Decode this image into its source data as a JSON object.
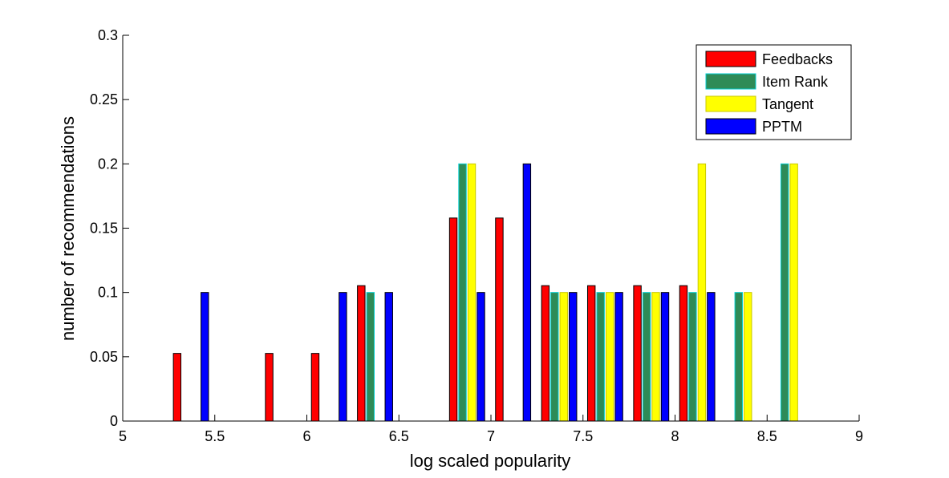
{
  "chart_data": {
    "type": "bar",
    "xlabel": "log scaled popularity",
    "ylabel": "number of recommendations",
    "xlim": [
      5,
      9
    ],
    "ylim": [
      0,
      0.3
    ],
    "xticks": [
      "5",
      "5.5",
      "6",
      "6.5",
      "7",
      "7.5",
      "8",
      "8.5",
      "9"
    ],
    "yticks": [
      "0",
      "0.05",
      "0.1",
      "0.15",
      "0.2",
      "0.25",
      "0.3"
    ],
    "bin_centers": [
      5.125,
      5.375,
      5.625,
      5.875,
      6.125,
      6.375,
      6.625,
      6.875,
      7.125,
      7.375,
      7.625,
      7.875,
      8.125,
      8.375,
      8.625,
      8.875
    ],
    "legend_position": "top-right",
    "series": [
      {
        "name": "Feedbacks",
        "color": "#ff0000",
        "values": [
          0,
          0.0526,
          0,
          0.0526,
          0.0526,
          0.1053,
          0,
          0.1579,
          0.1579,
          0.1053,
          0.1053,
          0.1053,
          0.1053,
          0,
          0,
          0
        ]
      },
      {
        "name": "Item Rank",
        "color": "#2e8b57",
        "values": [
          0,
          0,
          0,
          0,
          0,
          0.1,
          0,
          0.2,
          0,
          0.1,
          0.1,
          0.1,
          0.1,
          0.1,
          0.2,
          0
        ]
      },
      {
        "name": "Tangent",
        "color": "#ffff00",
        "values": [
          0,
          0,
          0,
          0,
          0,
          0,
          0,
          0.2,
          0,
          0.1,
          0.1,
          0.1,
          0.2,
          0.1,
          0.2,
          0
        ]
      },
      {
        "name": "PPTM",
        "color": "#0000ff",
        "values": [
          0,
          0.1,
          0,
          0,
          0.1,
          0.1,
          0,
          0.1,
          0.2,
          0.1,
          0.1,
          0.1,
          0.1,
          0,
          0,
          0
        ]
      }
    ]
  }
}
